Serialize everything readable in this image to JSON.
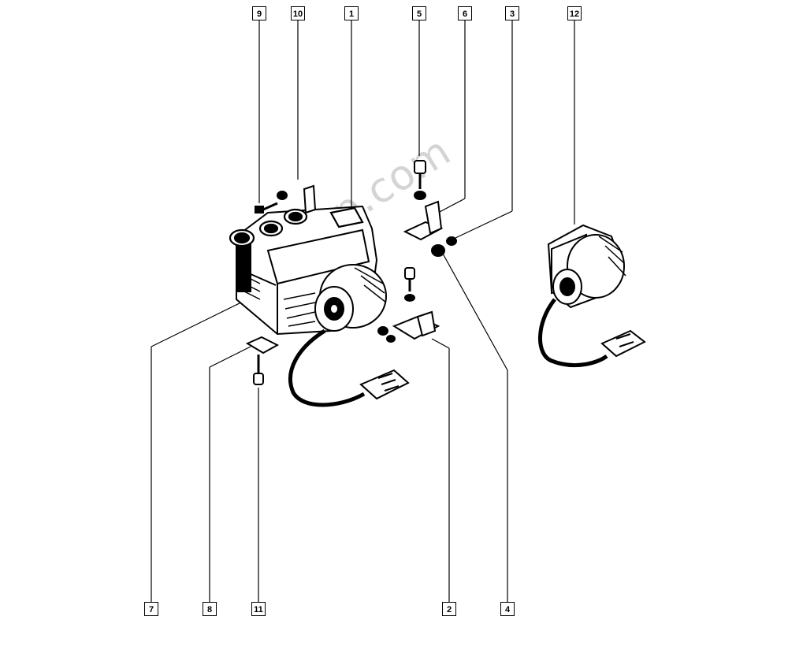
{
  "watermark": "7zap.com",
  "callouts": {
    "c1": "1",
    "c2": "2",
    "c3": "3",
    "c4": "4",
    "c5": "5",
    "c6": "6",
    "c7": "7",
    "c8": "8",
    "c9": "9",
    "c10": "10",
    "c11": "11",
    "c12": "12"
  }
}
